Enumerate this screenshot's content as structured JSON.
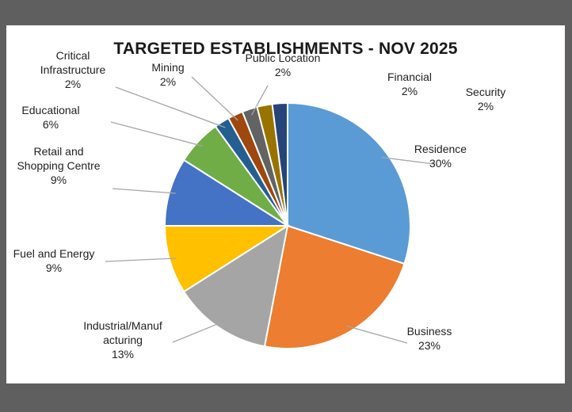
{
  "chart_data": {
    "type": "pie",
    "title": "TARGETED ESTABLISHMENTS - NOV 2025",
    "slices": [
      {
        "label": "Residence",
        "lines": [
          "Residence",
          "30%"
        ],
        "value": 30,
        "color": "#5b9bd5"
      },
      {
        "label": "Business",
        "lines": [
          "Business",
          "23%"
        ],
        "value": 23,
        "color": "#ed7d31"
      },
      {
        "label": "Industrial/Manufacturing",
        "lines": [
          "Industrial/Manuf",
          "acturing",
          "13%"
        ],
        "value": 13,
        "color": "#a5a5a5"
      },
      {
        "label": "Fuel and Energy",
        "lines": [
          "Fuel and Energy",
          "9%"
        ],
        "value": 9,
        "color": "#ffc000"
      },
      {
        "label": "Retail and Shopping Centre",
        "lines": [
          "Retail and",
          "Shopping Centre",
          "9%"
        ],
        "value": 9,
        "color": "#4472c4"
      },
      {
        "label": "Educational",
        "lines": [
          "Educational",
          "6%"
        ],
        "value": 6,
        "color": "#70ad47"
      },
      {
        "label": "Critical Infrastructure",
        "lines": [
          "Critical",
          "Infrastructure",
          "2%"
        ],
        "value": 2,
        "color": "#255e91"
      },
      {
        "label": "Mining",
        "lines": [
          "Mining",
          "2%"
        ],
        "value": 2,
        "color": "#9e480e"
      },
      {
        "label": "Public Location",
        "lines": [
          "Public Location",
          "2%"
        ],
        "value": 2,
        "color": "#636363"
      },
      {
        "label": "Financial",
        "lines": [
          "Financial",
          "2%"
        ],
        "value": 2,
        "color": "#997300"
      },
      {
        "label": "Security",
        "lines": [
          "Security",
          "2%"
        ],
        "value": 2,
        "color": "#264478"
      }
    ]
  }
}
